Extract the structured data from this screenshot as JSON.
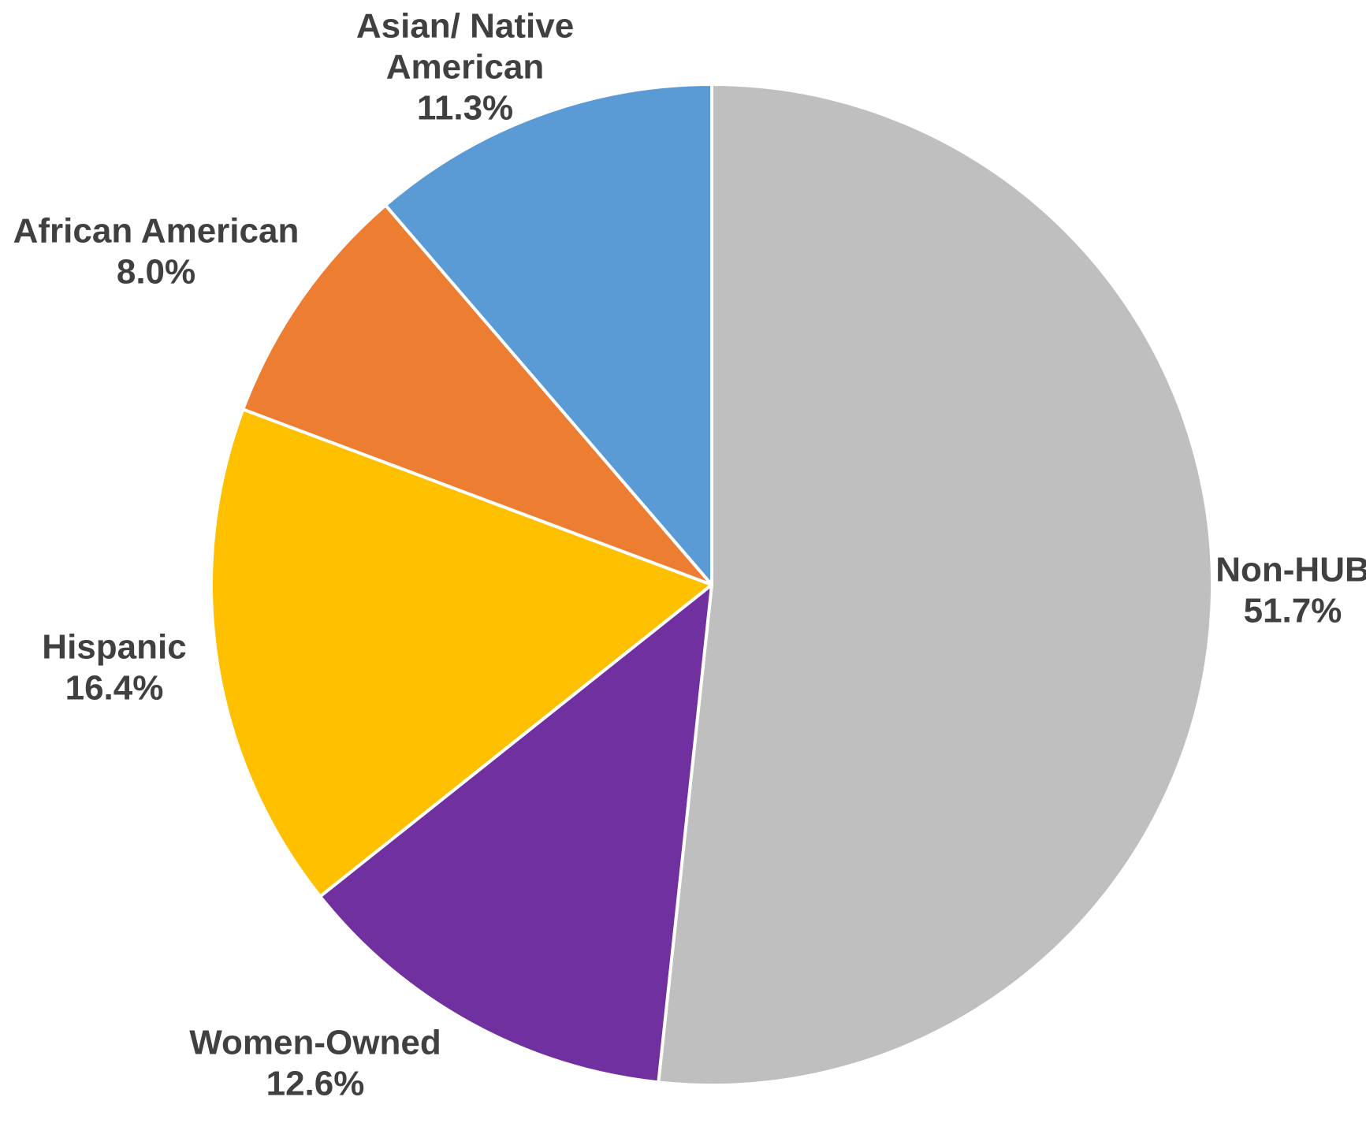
{
  "chart_data": {
    "type": "pie",
    "title": "",
    "start_angle_deg": 0,
    "direction": "clockwise",
    "slices": [
      {
        "label": "Non-HUB",
        "value": 51.7,
        "value_label": "51.7%",
        "color": "#BFBFBF"
      },
      {
        "label": "Women-Owned",
        "value": 12.6,
        "value_label": "12.6%",
        "color": "#7030A0"
      },
      {
        "label": "Hispanic",
        "value": 16.4,
        "value_label": "16.4%",
        "color": "#FFC000"
      },
      {
        "label": "African American",
        "value": 8.0,
        "value_label": "8.0%",
        "color": "#ED7D31"
      },
      {
        "label": [
          "Asian/ Native",
          "American"
        ],
        "value": 11.3,
        "value_label": "11.3%",
        "color": "#5B9BD5"
      }
    ]
  }
}
